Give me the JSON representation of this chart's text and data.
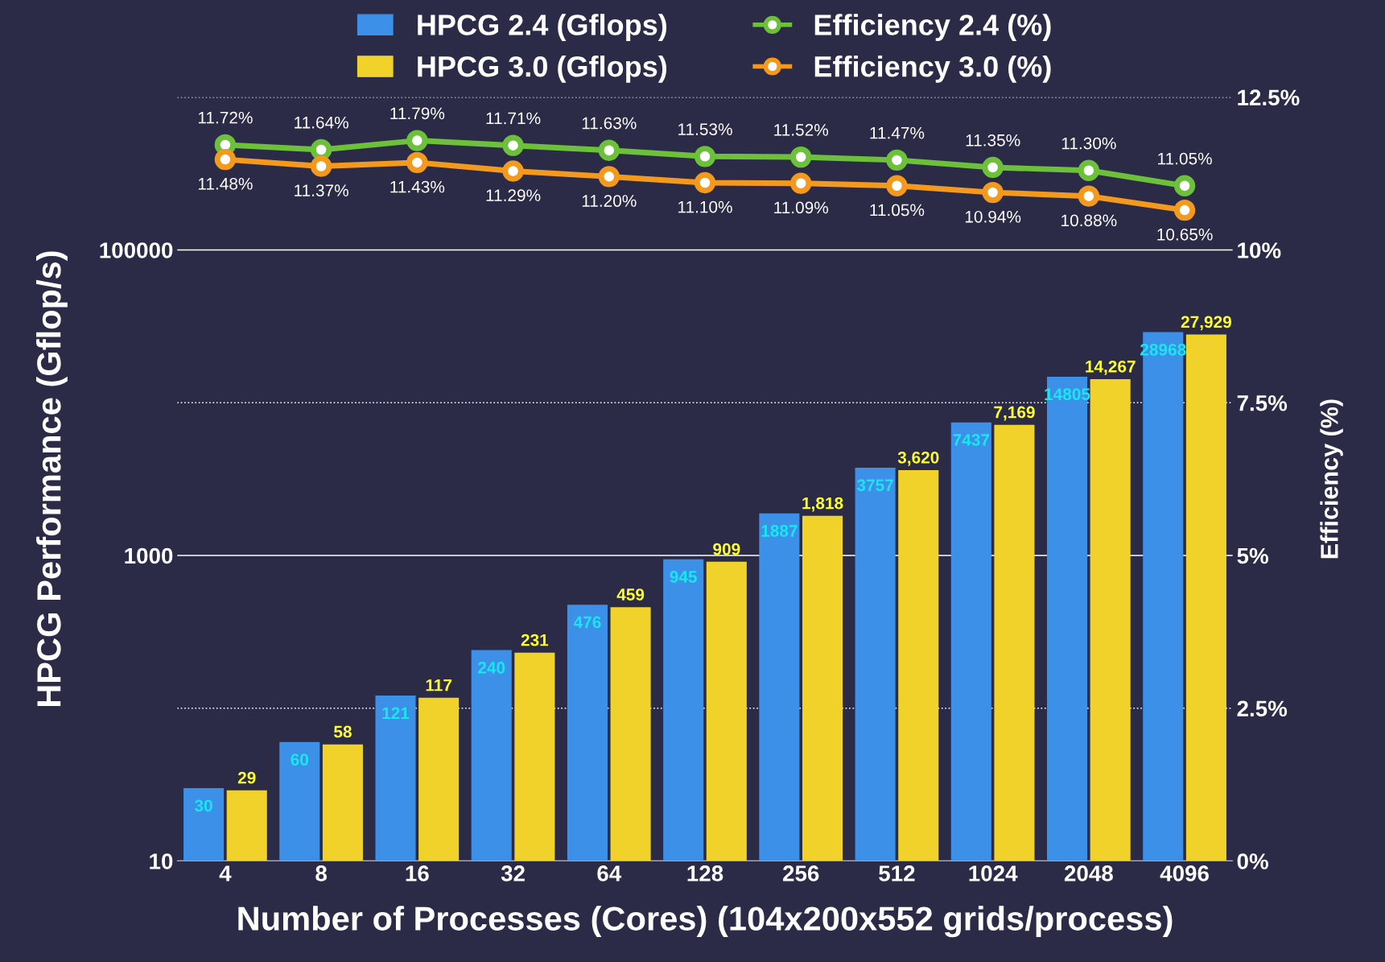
{
  "chart_data": {
    "type": "bar",
    "xlabel": "Number of Processes (Cores) (104x200x552 grids/process)",
    "ylabel": "HPCG Performance (Gflop/s)",
    "y2label": "Efficiency (%)",
    "categories": [
      "4",
      "8",
      "16",
      "32",
      "64",
      "128",
      "256",
      "512",
      "1024",
      "2048",
      "4096"
    ],
    "series": [
      {
        "name": "HPCG 2.4 (Gflops)",
        "color": "#3d90e8",
        "values": [
          30,
          60,
          121,
          240,
          476,
          945,
          1887,
          3757,
          7437,
          14805,
          28968
        ],
        "value_labels": [
          "30",
          "60",
          "121",
          "240",
          "476",
          "945",
          "1887",
          "3757",
          "7437",
          "14805",
          "28968"
        ]
      },
      {
        "name": "HPCG 3.0 (Gflops)",
        "color": "#f0d22a",
        "values": [
          29,
          58,
          117,
          231,
          459,
          909,
          1818,
          3620,
          7169,
          14267,
          27929
        ],
        "value_labels": [
          "29",
          "58",
          "117",
          "231",
          "459",
          "909",
          "1,818",
          "3,620",
          "7,169",
          "14,267",
          "27,929"
        ]
      },
      {
        "name": "Efficiency 2.4 (%)",
        "type": "line",
        "axis": "y2",
        "color": "#6cc03a",
        "values": [
          11.72,
          11.64,
          11.79,
          11.71,
          11.63,
          11.53,
          11.52,
          11.47,
          11.35,
          11.3,
          11.05
        ],
        "value_labels": [
          "11.72%",
          "11.64%",
          "11.79%",
          "11.71%",
          "11.63%",
          "11.53%",
          "11.52%",
          "11.47%",
          "11.35%",
          "11.30%",
          "11.05%"
        ]
      },
      {
        "name": "Efficiency 3.0 (%)",
        "type": "line",
        "axis": "y2",
        "color": "#f39a1e",
        "values": [
          11.48,
          11.37,
          11.43,
          11.29,
          11.2,
          11.1,
          11.09,
          11.05,
          10.94,
          10.88,
          10.65
        ],
        "value_labels": [
          "11.48%",
          "11.37%",
          "11.43%",
          "11.29%",
          "11.20%",
          "11.10%",
          "11.09%",
          "11.05%",
          "10.94%",
          "10.88%",
          "10.65%"
        ]
      }
    ],
    "log": "y",
    "ylim": [
      10,
      1000000
    ],
    "yticks": [
      10,
      {
        "value": 100,
        "label": null
      },
      1000,
      {
        "value": 10000,
        "label": null
      },
      100000,
      {
        "value": 1000000,
        "label": null
      }
    ],
    "y2lim": [
      0,
      12.5
    ],
    "y2ticks": [
      {
        "value": 0,
        "label": "0%"
      },
      {
        "value": 2.5,
        "label": "2.5%"
      },
      {
        "value": 5,
        "label": "5%"
      },
      {
        "value": 7.5,
        "label": "7.5%"
      },
      {
        "value": 10,
        "label": "10%"
      },
      {
        "value": 12.5,
        "label": "12.5%"
      }
    ],
    "grid": "y",
    "legend": "top",
    "marker": "circle",
    "line_style": "solid"
  }
}
